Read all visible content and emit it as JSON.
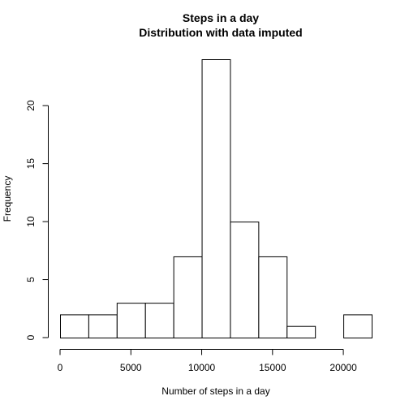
{
  "chart_data": {
    "type": "bar",
    "title": "Steps in a day",
    "subtitle": "Distribution with data imputed",
    "xlabel": "Number of steps in a day",
    "ylabel": "Frequency",
    "bins": [
      {
        "x0": 0,
        "x1": 2000,
        "count": 2
      },
      {
        "x0": 2000,
        "x1": 4000,
        "count": 2
      },
      {
        "x0": 4000,
        "x1": 6000,
        "count": 3
      },
      {
        "x0": 6000,
        "x1": 8000,
        "count": 3
      },
      {
        "x0": 8000,
        "x1": 10000,
        "count": 7
      },
      {
        "x0": 10000,
        "x1": 12000,
        "count": 24
      },
      {
        "x0": 12000,
        "x1": 14000,
        "count": 10
      },
      {
        "x0": 14000,
        "x1": 16000,
        "count": 7
      },
      {
        "x0": 16000,
        "x1": 18000,
        "count": 1
      },
      {
        "x0": 18000,
        "x1": 20000,
        "count": 0
      },
      {
        "x0": 20000,
        "x1": 22000,
        "count": 2
      }
    ],
    "xticks": [
      0,
      5000,
      10000,
      15000,
      20000
    ],
    "yticks": [
      0,
      5,
      10,
      15,
      20
    ],
    "xlim": [
      0,
      22000
    ],
    "ylim": [
      0,
      24
    ],
    "grid": false,
    "legend": "none"
  }
}
